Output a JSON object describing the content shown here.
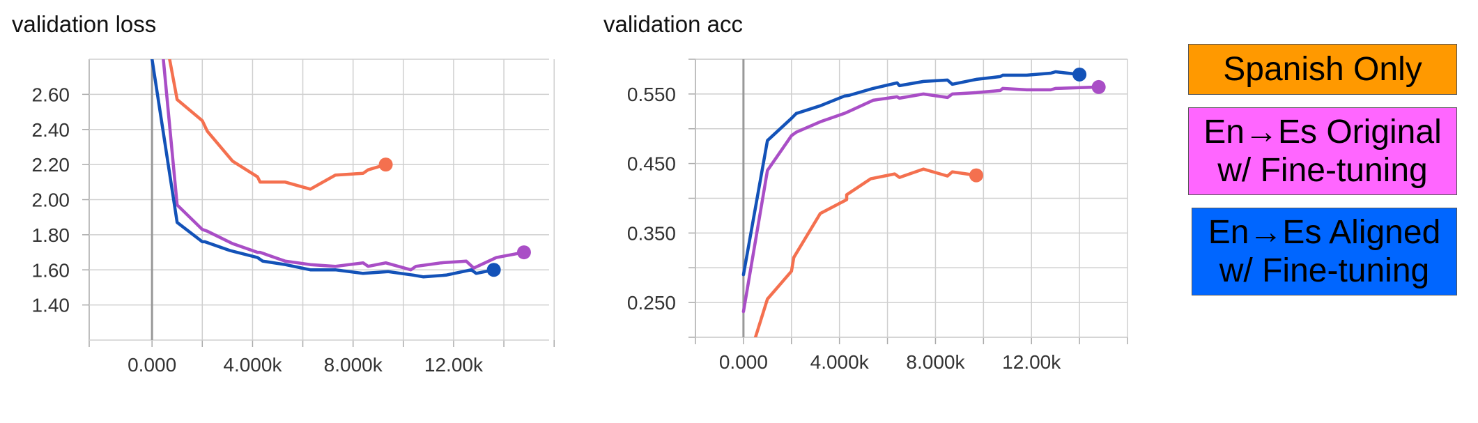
{
  "chart_data": [
    {
      "type": "line",
      "title": "validation loss",
      "xlim": [
        -2500,
        15800
      ],
      "ylim": [
        1.2,
        2.8
      ],
      "xticks": [
        0,
        2000,
        4000,
        6000,
        8000,
        10000,
        12000,
        14000,
        16000
      ],
      "xtick_labels": [
        {
          "value": 0,
          "label": "0.000"
        },
        {
          "value": 4000,
          "label": "4.000k"
        },
        {
          "value": 8000,
          "label": "8.000k"
        },
        {
          "value": 12000,
          "label": "12.00k"
        }
      ],
      "yticks": [
        1.4,
        1.6,
        1.8,
        2.0,
        2.2,
        2.4,
        2.6
      ],
      "ytick_labels": [
        {
          "value": 1.4,
          "label": "1.40"
        },
        {
          "value": 1.6,
          "label": "1.60"
        },
        {
          "value": 1.8,
          "label": "1.80"
        },
        {
          "value": 2.0,
          "label": "2.00"
        },
        {
          "value": 2.2,
          "label": "2.20"
        },
        {
          "value": 2.4,
          "label": "2.40"
        },
        {
          "value": 2.6,
          "label": "2.60"
        }
      ],
      "grid": true,
      "series": [
        {
          "name": "Spanish Only",
          "color": "#f4704f",
          "x": [
            700,
            1000,
            2000,
            2200,
            3200,
            4200,
            4300,
            5300,
            6300,
            7300,
            8400,
            8600,
            9300
          ],
          "y": [
            2.8,
            2.57,
            2.45,
            2.39,
            2.22,
            2.13,
            2.1,
            2.1,
            2.06,
            2.14,
            2.15,
            2.17,
            2.2
          ]
        },
        {
          "name": "En→Es Original w/ Fine-tuning",
          "color": "#a94ec6",
          "x": [
            450,
            1000,
            2000,
            2200,
            3200,
            4200,
            4300,
            5300,
            6300,
            7300,
            8400,
            8600,
            9300,
            10300,
            10500,
            11500,
            12500,
            12800,
            13700,
            14800
          ],
          "y": [
            2.8,
            1.97,
            1.83,
            1.82,
            1.75,
            1.7,
            1.7,
            1.65,
            1.63,
            1.62,
            1.64,
            1.62,
            1.64,
            1.6,
            1.62,
            1.64,
            1.65,
            1.61,
            1.67,
            1.7
          ]
        },
        {
          "name": "En→Es Aligned w/ Fine-tuning",
          "color": "#1352b8",
          "x": [
            0,
            1000,
            2000,
            2100,
            3100,
            4200,
            4400,
            5300,
            6300,
            7300,
            8400,
            9400,
            10400,
            10800,
            11700,
            12700,
            12900,
            13600
          ],
          "y": [
            2.8,
            1.87,
            1.76,
            1.76,
            1.71,
            1.67,
            1.65,
            1.63,
            1.6,
            1.6,
            1.58,
            1.59,
            1.57,
            1.56,
            1.57,
            1.6,
            1.58,
            1.6
          ]
        }
      ]
    },
    {
      "type": "line",
      "title": "validation acc",
      "xlim": [
        -2000,
        16000
      ],
      "ylim": [
        0.2,
        0.6
      ],
      "xticks": [
        0,
        2000,
        4000,
        6000,
        8000,
        10000,
        12000,
        14000,
        16000
      ],
      "xtick_labels": [
        {
          "value": 0,
          "label": "0.000"
        },
        {
          "value": 4000,
          "label": "4.000k"
        },
        {
          "value": 8000,
          "label": "8.000k"
        },
        {
          "value": 12000,
          "label": "12.00k"
        }
      ],
      "yticks": [
        0.2,
        0.25,
        0.3,
        0.35,
        0.4,
        0.45,
        0.5,
        0.55,
        0.6
      ],
      "ytick_labels": [
        {
          "value": 0.25,
          "label": "0.250"
        },
        {
          "value": 0.35,
          "label": "0.350"
        },
        {
          "value": 0.45,
          "label": "0.450"
        },
        {
          "value": 0.55,
          "label": "0.550"
        }
      ],
      "grid": true,
      "series": [
        {
          "name": "Spanish Only",
          "color": "#f4704f",
          "x": [
            500,
            1000,
            2000,
            2100,
            3200,
            4300,
            4300,
            5300,
            6300,
            6500,
            7500,
            8500,
            8700,
            9700
          ],
          "y": [
            0.2,
            0.255,
            0.295,
            0.315,
            0.378,
            0.398,
            0.405,
            0.428,
            0.435,
            0.43,
            0.442,
            0.432,
            0.438,
            0.433
          ]
        },
        {
          "name": "En→Es Original w/ Fine-tuning",
          "color": "#a94ec6",
          "x": [
            0,
            1000,
            2000,
            2200,
            3200,
            4200,
            4400,
            5400,
            6400,
            6500,
            7500,
            8500,
            8700,
            9700,
            10700,
            10800,
            11800,
            12800,
            13000,
            14800
          ],
          "y": [
            0.237,
            0.44,
            0.49,
            0.495,
            0.51,
            0.522,
            0.525,
            0.541,
            0.546,
            0.544,
            0.55,
            0.545,
            0.55,
            0.552,
            0.555,
            0.558,
            0.556,
            0.556,
            0.558,
            0.56
          ]
        },
        {
          "name": "En→Es Aligned w/ Fine-tuning",
          "color": "#1352b8",
          "x": [
            0,
            1000,
            2000,
            2200,
            3200,
            4200,
            4400,
            5400,
            6400,
            6500,
            7500,
            8500,
            8700,
            9700,
            10700,
            10800,
            11800,
            12800,
            13000,
            14000
          ],
          "y": [
            0.29,
            0.483,
            0.515,
            0.522,
            0.533,
            0.547,
            0.548,
            0.558,
            0.566,
            0.562,
            0.568,
            0.57,
            0.564,
            0.571,
            0.575,
            0.577,
            0.577,
            0.58,
            0.582,
            0.578
          ]
        }
      ]
    }
  ],
  "legend": [
    {
      "label": "Spanish Only",
      "color": "#ff9900"
    },
    {
      "label": "En→Es Original\n w/ Fine-tuning",
      "color": "#ff66ff"
    },
    {
      "label": "En→Es Aligned\n w/ Fine-tuning",
      "color": "#0066ff"
    }
  ]
}
